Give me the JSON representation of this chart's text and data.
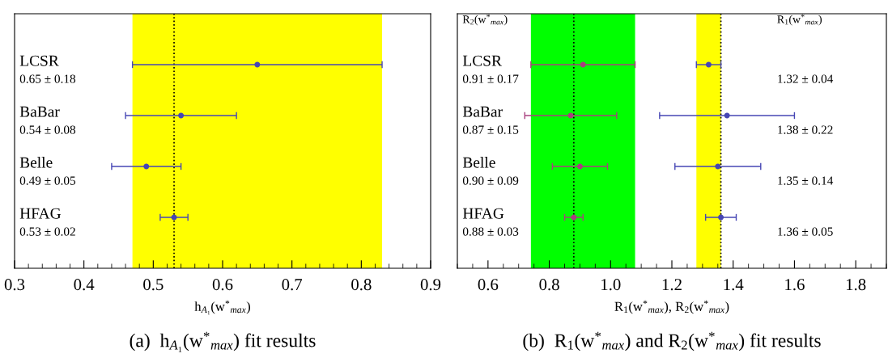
{
  "chart_data": [
    {
      "type": "scatter",
      "orientation": "horizontal",
      "title": "(a)  h$_{A₁}$(w$^{*}$$_{max}$) fit results",
      "xlabel": "h$_{A₁}$(w$^{*}$$_{max}$)",
      "categories": [
        "LCSR",
        "BaBar",
        "Belle",
        "HFAG"
      ],
      "series": [
        {
          "color": "#4646b4",
          "values": [
            0.65,
            0.54,
            0.49,
            0.53
          ],
          "errors": [
            0.18,
            0.08,
            0.05,
            0.02
          ]
        }
      ],
      "annotations": [
        "0.65 ± 0.18",
        "0.54 ± 0.08",
        "0.49 ± 0.05",
        "0.53 ± 0.02"
      ],
      "xlim": [
        0.3,
        0.9
      ],
      "xticks": [
        0.3,
        0.4,
        0.5,
        0.6,
        0.7,
        0.8,
        0.9
      ],
      "bands": [
        {
          "axis": "x",
          "from": 0.47,
          "to": 0.83,
          "color": "#ffff00"
        }
      ],
      "ref_lines": [
        {
          "axis": "x",
          "value": 0.53,
          "color": "#000000",
          "line_style": "dotted"
        }
      ],
      "marker": "circle"
    },
    {
      "type": "scatter",
      "orientation": "horizontal",
      "title": "(b)  R$_{1}$(w$^{*}$$_{max}$) and R$_{2}$(w$^{*}$$_{max}$) fit results",
      "xlabel": "R$_{1}$(w$^{*}$$_{max}$), R$_{2}$(w$^{*}$$_{max}$)",
      "categories": [
        "LCSR",
        "BaBar",
        "Belle",
        "HFAG"
      ],
      "series": [
        {
          "color": "#a8407e",
          "values": [
            0.91,
            0.87,
            0.9,
            0.88
          ],
          "errors": [
            0.17,
            0.15,
            0.09,
            0.03
          ]
        },
        {
          "color": "#4646b4",
          "values": [
            1.32,
            1.38,
            1.35,
            1.36
          ],
          "errors": [
            0.04,
            0.22,
            0.14,
            0.05
          ]
        }
      ],
      "annotations": [
        "R$_{2}$(w$^{*}$$_{max}$)",
        "R$_{1}$(w$^{*}$$_{max}$)",
        "0.91 ± 0.17",
        "1.32 ± 0.04",
        "0.87 ± 0.15",
        "1.38 ± 0.22",
        "0.90 ± 0.09",
        "1.35 ± 0.14",
        "0.88 ± 0.03",
        "1.36 ± 0.05"
      ],
      "xlim": [
        0.5,
        1.9
      ],
      "xticks": [
        {
          "value": 0.6,
          "label": "0.6"
        },
        {
          "value": 0.8,
          "label": "0.8"
        },
        {
          "value": 1.0,
          "label": "1.0"
        },
        {
          "value": 1.2,
          "label": "1.2"
        },
        {
          "value": 1.4,
          "label": "1.4"
        },
        {
          "value": 1.6,
          "label": "1.6"
        },
        {
          "value": 1.8,
          "label": "1.8"
        }
      ],
      "bands": [
        {
          "axis": "x",
          "from": 0.74,
          "to": 1.08,
          "color": "#00ff00"
        },
        {
          "axis": "x",
          "from": 1.28,
          "to": 1.36,
          "color": "#ffff00"
        }
      ],
      "ref_lines": [
        {
          "axis": "x",
          "value": 0.88,
          "color": "#000000",
          "line_style": "dotted"
        },
        {
          "axis": "x",
          "value": 1.36,
          "color": "#000000",
          "line_style": "dotted"
        }
      ],
      "marker": "circle"
    }
  ]
}
